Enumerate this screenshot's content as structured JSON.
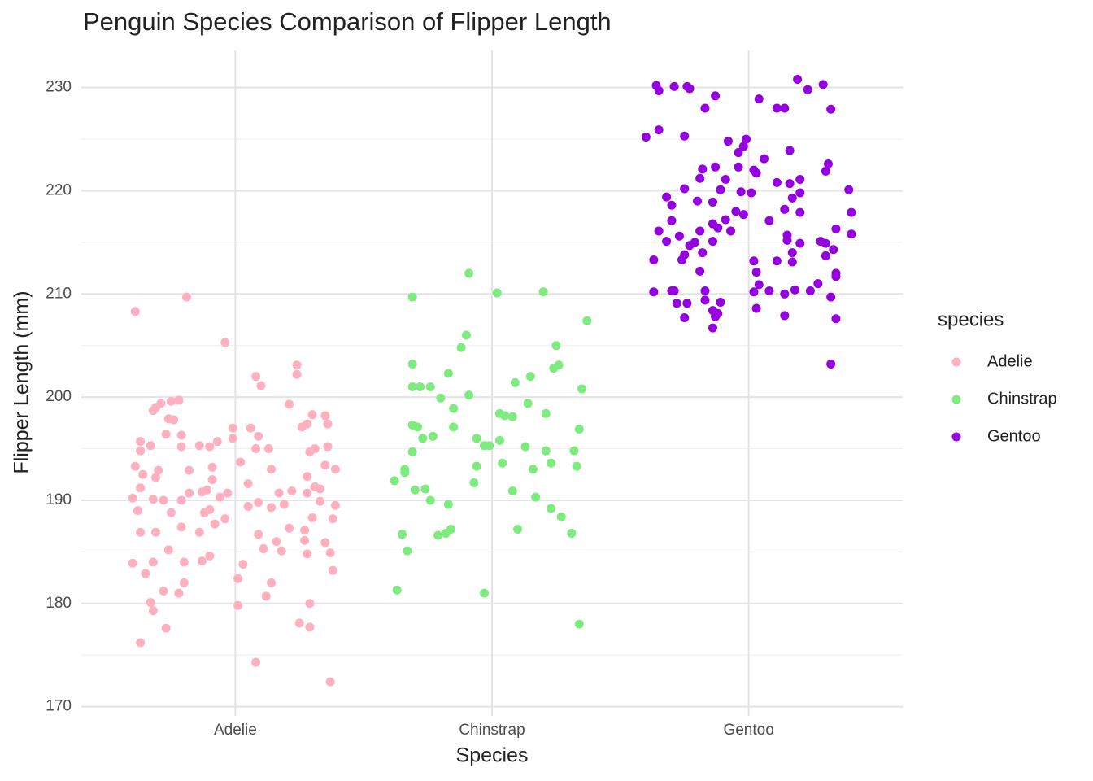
{
  "chart_data": {
    "type": "scatter",
    "title": "Penguin Species Comparison of Flipper Length",
    "x_label": "Species",
    "y_label": "Flipper Length (mm)",
    "legend_title": "species",
    "legend": "right",
    "xlim": [
      0.4,
      3.6
    ],
    "xticks": [
      {
        "value": 1,
        "label": "Adelie"
      },
      {
        "value": 2,
        "label": "Chinstrap"
      },
      {
        "value": 3,
        "label": "Gentoo"
      }
    ],
    "ylim": [
      169.1,
      233.6
    ],
    "yticks": [
      170,
      180,
      190,
      200,
      210,
      220,
      230
    ],
    "minor_yticks": [
      175,
      185,
      195,
      205,
      215,
      225
    ],
    "grid": true,
    "series": [
      {
        "name": "Adelie",
        "color": "#ffb0c0",
        "x": [
          0.61,
          0.81,
          0.96,
          1.08,
          1.1,
          1.24,
          1.24,
          0.63,
          1.37,
          1.08,
          1.29,
          1.25,
          0.73,
          0.68,
          0.67,
          1.01,
          1.29,
          0.78,
          1.12,
          0.72,
          0.8,
          1.14,
          1.01,
          0.65,
          1.38,
          0.6,
          0.68,
          0.8,
          0.87,
          1.03,
          0.9,
          1.37,
          1.28,
          0.74,
          1.11,
          1.18,
          1.35,
          1.16,
          1.27,
          0.63,
          0.69,
          0.86,
          1.09,
          1.21,
          1.27,
          0.79,
          0.92,
          1.3,
          1.38,
          0.96,
          0.75,
          0.88,
          0.9,
          0.62,
          1.05,
          1.14,
          1.19,
          1.39,
          1.33,
          1.09,
          0.68,
          0.79,
          0.6,
          0.72,
          0.94,
          0.97,
          0.82,
          0.87,
          0.89,
          1.17,
          1.22,
          1.28,
          1.33,
          0.63,
          1.05,
          1.31,
          0.91,
          0.69,
          1.28,
          0.7,
          0.61,
          0.82,
          0.91,
          1.02,
          1.14,
          1.35,
          1.39,
          0.64,
          0.63,
          0.67,
          0.86,
          0.79,
          0.9,
          0.93,
          1.13,
          1.08,
          1.29,
          1.31,
          1.36,
          0.63,
          0.79,
          0.73,
          0.99,
          1.06,
          0.99,
          1.09,
          1.26,
          1.28,
          1.36,
          1.3,
          1.35,
          0.74,
          0.76,
          0.68,
          0.69,
          0.71,
          0.75,
          0.78,
          1.21
        ],
        "values": [
          208.3,
          209.7,
          205.3,
          202.0,
          201.1,
          203.1,
          202.2,
          176.2,
          172.4,
          174.3,
          177.7,
          178.1,
          177.6,
          179.3,
          180.1,
          179.8,
          180.0,
          181.0,
          180.7,
          181.2,
          182.0,
          182.0,
          182.4,
          182.9,
          183.2,
          183.9,
          184.0,
          184.0,
          184.1,
          183.8,
          184.6,
          184.9,
          184.8,
          185.2,
          185.3,
          185.1,
          185.9,
          186.0,
          186.1,
          186.9,
          186.9,
          186.9,
          186.7,
          187.3,
          187.1,
          187.4,
          187.7,
          188.3,
          188.2,
          188.2,
          188.8,
          188.8,
          189.1,
          189.0,
          189.4,
          189.3,
          189.6,
          189.5,
          189.9,
          189.8,
          190.1,
          190.0,
          190.2,
          190.0,
          190.3,
          190.7,
          190.7,
          190.8,
          191.0,
          190.7,
          190.9,
          190.7,
          191.1,
          191.2,
          191.6,
          191.3,
          192.0,
          192.2,
          192.3,
          192.9,
          193.3,
          192.9,
          193.2,
          193.7,
          193.0,
          193.4,
          193.0,
          192.5,
          194.8,
          195.3,
          195.3,
          195.2,
          195.2,
          195.7,
          195.0,
          195.0,
          194.7,
          195.0,
          195.2,
          195.7,
          196.3,
          196.4,
          196.0,
          197.0,
          197.0,
          196.2,
          197.1,
          197.4,
          197.4,
          198.3,
          198.2,
          197.9,
          197.8,
          198.7,
          199.0,
          199.4,
          199.6,
          199.7,
          199.3
        ]
      },
      {
        "name": "Chinstrap",
        "color": "#7deb7d",
        "x": [
          1.91,
          2.02,
          2.2,
          1.69,
          2.37,
          1.9,
          2.25,
          1.88,
          1.69,
          2.26,
          2.24,
          1.83,
          2.15,
          2.09,
          1.69,
          1.72,
          1.76,
          2.35,
          1.8,
          1.91,
          2.14,
          1.85,
          2.03,
          2.05,
          2.08,
          2.21,
          1.69,
          1.71,
          1.85,
          2.34,
          1.77,
          1.73,
          1.94,
          2.03,
          1.97,
          1.99,
          2.13,
          1.69,
          2.21,
          2.32,
          2.04,
          2.23,
          1.94,
          2.33,
          1.66,
          1.66,
          2.16,
          1.62,
          1.93,
          1.7,
          1.74,
          2.08,
          2.17,
          1.76,
          1.83,
          2.23,
          2.27,
          1.84,
          2.1,
          1.79,
          1.82,
          1.65,
          2.31,
          1.67,
          1.63,
          1.97,
          2.34
        ],
        "values": [
          212.0,
          210.1,
          210.2,
          209.7,
          207.4,
          206.0,
          205.0,
          204.8,
          203.2,
          203.1,
          202.8,
          202.3,
          202.0,
          201.4,
          201.0,
          201.0,
          201.0,
          200.8,
          199.9,
          200.2,
          199.4,
          198.9,
          198.4,
          198.2,
          198.1,
          198.4,
          197.3,
          197.1,
          197.1,
          196.9,
          196.2,
          196.0,
          196.0,
          195.8,
          195.3,
          195.3,
          195.2,
          194.7,
          194.8,
          194.8,
          193.6,
          193.6,
          193.3,
          193.3,
          193.0,
          192.7,
          193.0,
          191.9,
          191.7,
          191.0,
          191.1,
          190.9,
          190.3,
          190.0,
          189.6,
          189.2,
          188.4,
          187.2,
          187.2,
          186.6,
          186.8,
          186.7,
          186.8,
          185.1,
          181.3,
          181.0,
          178.0
        ]
      },
      {
        "name": "Gentoo",
        "color": "#9400e0",
        "x": [
          2.64,
          2.65,
          2.71,
          2.76,
          2.77,
          2.87,
          2.83,
          3.19,
          3.23,
          3.29,
          3.04,
          3.11,
          3.14,
          3.32,
          2.6,
          2.65,
          2.75,
          2.92,
          2.99,
          2.98,
          2.96,
          3.06,
          3.16,
          3.31,
          3.3,
          2.82,
          2.87,
          2.96,
          3.02,
          3.03,
          2.81,
          2.91,
          2.75,
          3.11,
          3.16,
          3.2,
          3.39,
          2.89,
          2.97,
          3.01,
          2.68,
          2.8,
          2.86,
          3.17,
          3.2,
          2.7,
          2.95,
          3.14,
          3.2,
          3.4,
          2.7,
          2.86,
          2.91,
          3.08,
          2.98,
          2.93,
          2.65,
          2.81,
          2.88,
          3.15,
          3.34,
          3.4,
          2.68,
          2.73,
          2.77,
          2.79,
          2.86,
          3.15,
          3.2,
          3.28,
          3.3,
          3.33,
          2.82,
          3.17,
          3.3,
          2.63,
          2.74,
          2.75,
          3.02,
          3.11,
          3.17,
          3.03,
          2.81,
          3.34,
          3.34,
          3.04,
          3.27,
          2.63,
          2.7,
          2.71,
          2.83,
          3.02,
          3.08,
          3.14,
          3.18,
          3.24,
          3.32,
          2.72,
          2.76,
          2.83,
          2.89,
          3.03,
          2.86,
          2.88,
          2.87,
          2.75,
          3.14,
          3.34,
          2.86,
          3.32
        ],
        "values": [
          230.2,
          229.7,
          230.1,
          230.1,
          229.9,
          229.2,
          228.0,
          230.8,
          229.8,
          230.3,
          228.9,
          228.0,
          228.0,
          227.9,
          225.2,
          225.9,
          225.3,
          224.8,
          225.0,
          224.3,
          223.7,
          223.1,
          223.9,
          222.6,
          221.9,
          222.1,
          222.3,
          222.3,
          222.0,
          221.7,
          221.2,
          221.1,
          220.2,
          220.8,
          220.7,
          221.1,
          220.1,
          220.1,
          219.9,
          219.8,
          219.4,
          219.0,
          218.9,
          219.3,
          219.8,
          218.6,
          218.0,
          218.2,
          217.9,
          217.9,
          217.1,
          216.8,
          217.2,
          217.1,
          217.7,
          216.1,
          216.1,
          216.1,
          216.4,
          215.7,
          216.3,
          215.8,
          215.1,
          215.6,
          214.7,
          215.0,
          215.1,
          215.2,
          214.9,
          215.1,
          214.9,
          214.3,
          214.0,
          214.0,
          213.7,
          213.3,
          213.3,
          213.8,
          213.2,
          213.2,
          213.1,
          212.1,
          212.2,
          212.0,
          211.7,
          210.9,
          211.0,
          210.2,
          210.3,
          210.3,
          210.3,
          210.2,
          210.3,
          210.0,
          210.4,
          210.3,
          209.7,
          209.1,
          209.1,
          209.4,
          209.2,
          208.6,
          208.4,
          208.1,
          207.8,
          207.7,
          207.9,
          207.6,
          206.7,
          203.2
        ]
      }
    ]
  }
}
